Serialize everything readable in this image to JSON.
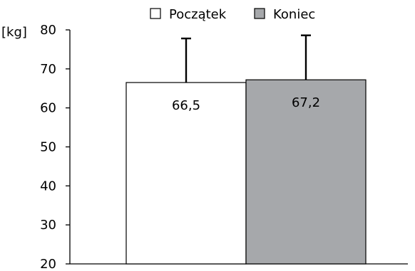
{
  "chart_data": {
    "type": "bar",
    "ylabel": "[kg]",
    "ylim": [
      20,
      80
    ],
    "yticks": [
      20,
      30,
      40,
      50,
      60,
      70,
      80
    ],
    "grid": false,
    "legend_position": "top",
    "series": [
      {
        "name": "Początek",
        "value": 66.5,
        "error": 11.3,
        "label": "66,5",
        "color": "#ffffff"
      },
      {
        "name": "Koniec",
        "value": 67.2,
        "error": 11.4,
        "label": "67,2",
        "color": "#a6a8ab"
      }
    ]
  }
}
